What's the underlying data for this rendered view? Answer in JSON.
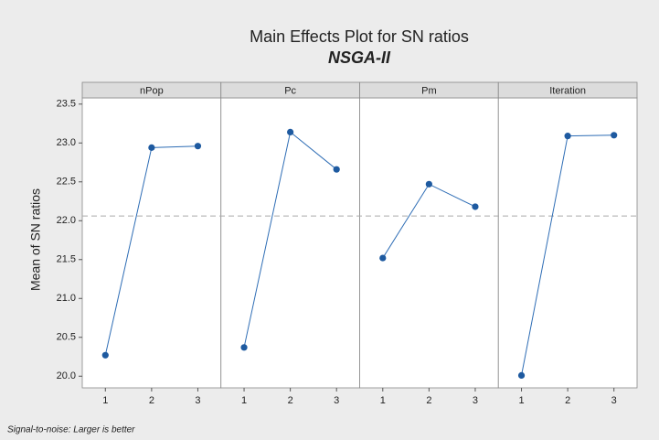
{
  "chart_data": {
    "type": "line",
    "title": "Main Effects Plot for SN ratios",
    "subtitle": "NSGA-II",
    "ylabel": "Mean of SN ratios",
    "footnote": "Signal-to-noise: Larger is better",
    "color": "#2e6db5",
    "marker_color": "#1e5aa0",
    "ylim": [
      19.85,
      23.58
    ],
    "yticks": [
      {
        "value": 20,
        "label": "20.0"
      },
      20.5,
      {
        "value": 21,
        "label": "21.0"
      },
      21.5,
      {
        "value": 22,
        "label": "22.0"
      },
      22.5,
      {
        "value": 23,
        "label": "23.0"
      },
      23.5
    ],
    "reference_line": 22.06,
    "panels": [
      {
        "name": "nPop",
        "categories": [
          "1",
          "2",
          "3"
        ],
        "values": [
          20.27,
          22.94,
          22.96
        ]
      },
      {
        "name": "Pc",
        "categories": [
          "1",
          "2",
          "3"
        ],
        "values": [
          20.37,
          23.14,
          22.66
        ]
      },
      {
        "name": "Pm",
        "categories": [
          "1",
          "2",
          "3"
        ],
        "values": [
          21.52,
          22.47,
          22.18
        ]
      },
      {
        "name": "Iteration",
        "categories": [
          "1",
          "2",
          "3"
        ],
        "values": [
          20.01,
          23.09,
          23.1
        ]
      }
    ]
  }
}
